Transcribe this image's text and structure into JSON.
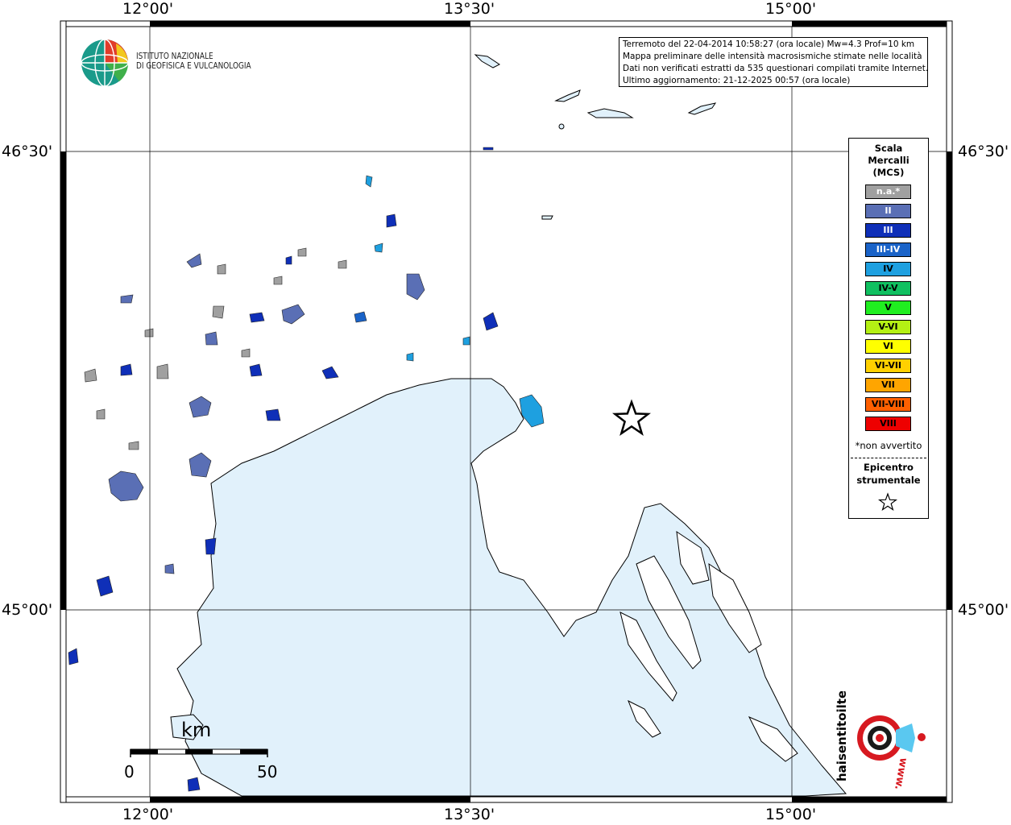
{
  "map": {
    "lon_ticks": [
      "12°00'",
      "13°30'",
      "15°00'"
    ],
    "lat_ticks": [
      "46°30'",
      "45°00'"
    ]
  },
  "info": {
    "lines": [
      "Terremoto del 22-04-2014 10:58:27 (ora locale) Mw=4.3 Prof=10 km",
      "Mappa preliminare delle intensità macrosismiche stimate nelle località",
      "Dati non verificati estratti da 535 questionari compilati tramite Internet.",
      "Ultimo aggiornamento: 21-12-2025 00:57 (ora locale)"
    ]
  },
  "logo_ingv": {
    "line1": "ISTITUTO NAZIONALE",
    "line2": "DI GEOFISICA E VULCANOLOGIA"
  },
  "legend": {
    "title_lines": [
      "Scala",
      "Mercalli",
      "(MCS)"
    ],
    "items": [
      {
        "label": "n.a.*",
        "color": "#a0a0a0",
        "text_color": "#ffffff"
      },
      {
        "label": "II",
        "color": "#5a6fb5",
        "text_color": "#ffffff"
      },
      {
        "label": "III",
        "color": "#0f2fb8",
        "text_color": "#ffffff"
      },
      {
        "label": "III-IV",
        "color": "#1a63c8",
        "text_color": "#ffffff"
      },
      {
        "label": "IV",
        "color": "#1ea0e0",
        "text_color": "#000000"
      },
      {
        "label": "IV-V",
        "color": "#10c060",
        "text_color": "#000000"
      },
      {
        "label": "V",
        "color": "#20ee20",
        "text_color": "#000000"
      },
      {
        "label": "V-VI",
        "color": "#b4f014",
        "text_color": "#000000"
      },
      {
        "label": "VI",
        "color": "#ffff00",
        "text_color": "#000000"
      },
      {
        "label": "VI-VII",
        "color": "#ffd000",
        "text_color": "#000000"
      },
      {
        "label": "VII",
        "color": "#ffa500",
        "text_color": "#000000"
      },
      {
        "label": "VII-VIII",
        "color": "#ff6000",
        "text_color": "#000000"
      },
      {
        "label": "VIII",
        "color": "#ee0000",
        "text_color": "#000000"
      }
    ],
    "note": "*non avvertito",
    "epicenter_lines": [
      "Epicentro",
      "strumentale"
    ]
  },
  "scalebar": {
    "unit": "km",
    "start": "0",
    "end": "50"
  },
  "hst_logo": {
    "brand": "haisentitoilterremoto.it",
    "url": "www."
  },
  "colors": {
    "sea": "#e1f1fb",
    "coast": "#000000"
  }
}
